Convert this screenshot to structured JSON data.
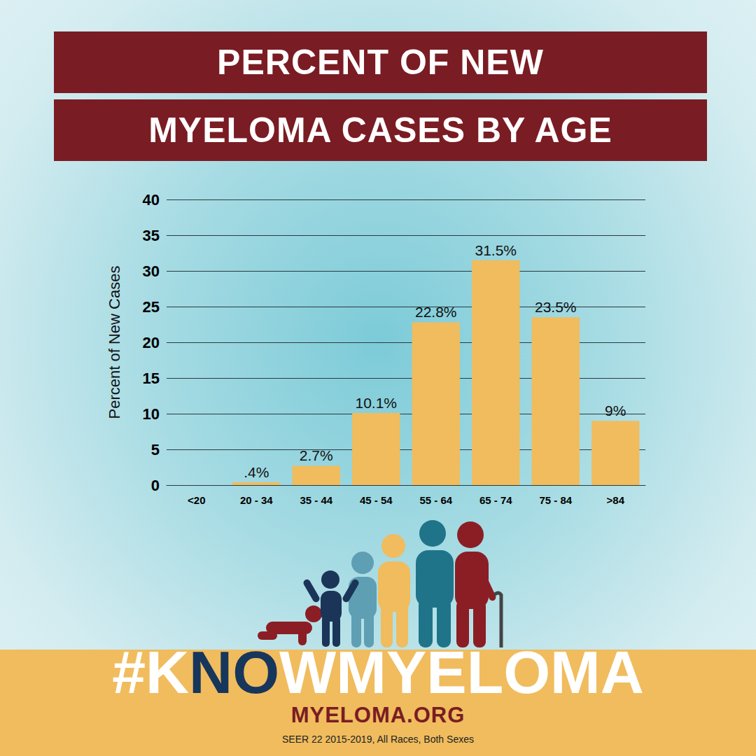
{
  "chart_data": {
    "type": "bar",
    "title": [
      "PERCENT OF NEW",
      "MYELOMA CASES BY AGE"
    ],
    "y_label": "Percent of New Cases",
    "categories": [
      "<20",
      "20 - 34",
      "35 - 44",
      "45 - 54",
      "55 - 64",
      "65 - 74",
      "75 - 84",
      ">84"
    ],
    "values": [
      0,
      0.4,
      2.7,
      10.1,
      22.8,
      31.5,
      23.5,
      9
    ],
    "value_labels": [
      null,
      ".4%",
      "2.7%",
      "10.1%",
      "22.8%",
      "31.5%",
      "23.5%",
      "9%"
    ],
    "color": "#f0bc5e",
    "ylim": [
      0,
      40
    ],
    "yticks": [
      0,
      5,
      10,
      15,
      20,
      25,
      30,
      35,
      40
    ],
    "grid": true,
    "data_labels": true,
    "annotations": {
      "hashtag": "#KNOWMYELOMA",
      "hashtag_highlight": "NO",
      "site": "MYELOMA.ORG",
      "source": "SEER 22 2015-2019, All Races, Both Sexes"
    }
  }
}
